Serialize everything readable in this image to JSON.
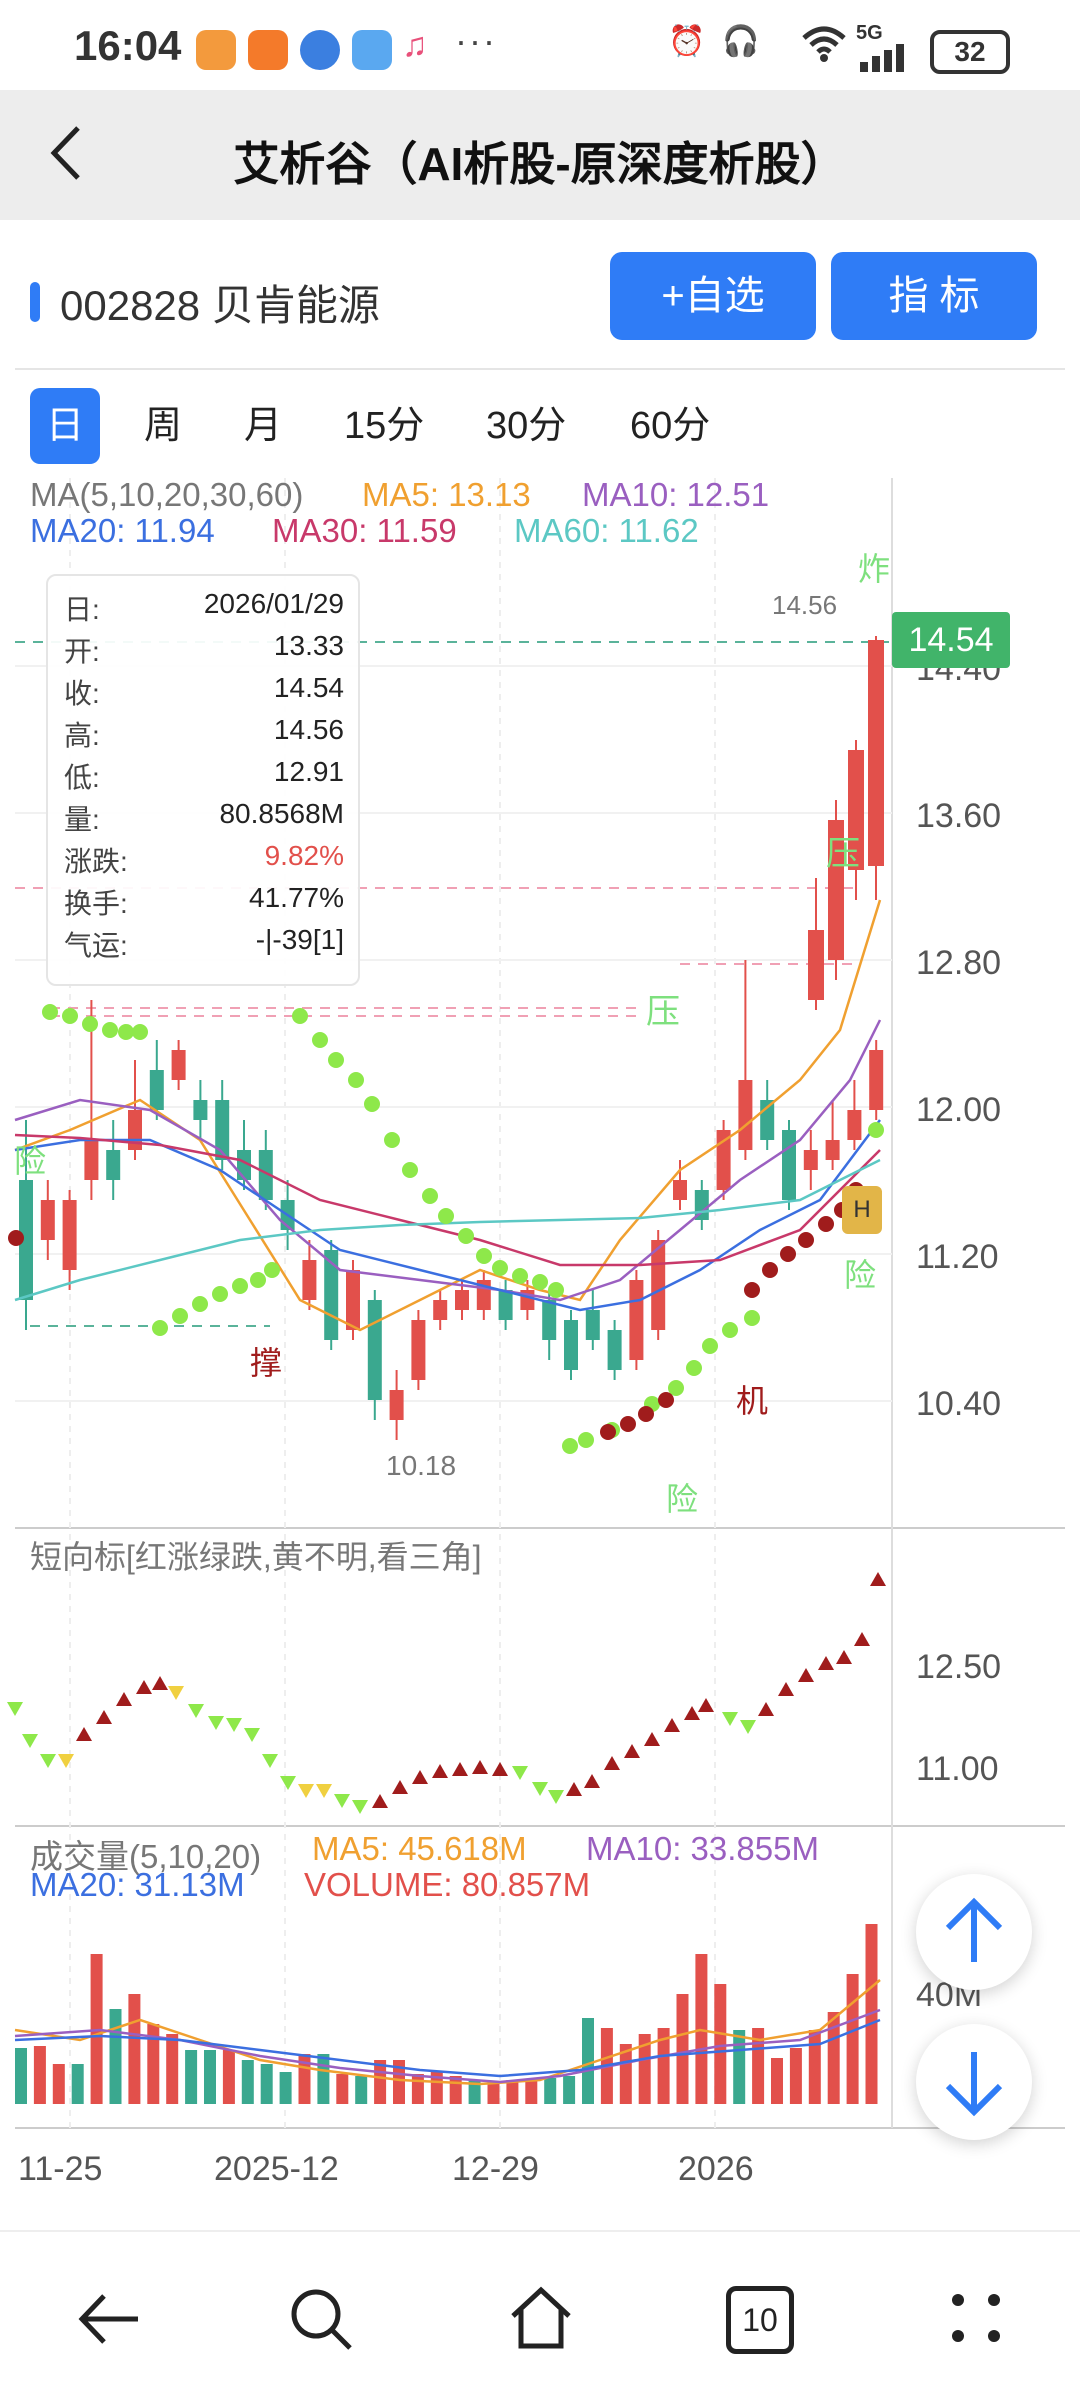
{
  "status": {
    "time": "16:04",
    "dots": "···",
    "network": "5G",
    "battery": "32"
  },
  "nav": {
    "title": "艾析谷（AI析股-原深度析股）"
  },
  "stock": {
    "name": "002828 贝肯能源",
    "add_btn": "+自选",
    "indicator_btn": "指  标"
  },
  "tabs": [
    "日",
    "周",
    "月",
    "15分",
    "30分",
    "60分"
  ],
  "ma_legend": {
    "label": "MA(5,10,20,30,60)",
    "ma5": "MA5: 13.13",
    "ma10": "MA10: 12.51",
    "ma20": "MA20: 11.94",
    "ma30": "MA30: 11.59",
    "ma60": "MA60: 11.62"
  },
  "info": {
    "rows": [
      {
        "k": "日:",
        "v": "2026/01/29"
      },
      {
        "k": "开:",
        "v": "13.33"
      },
      {
        "k": "收:",
        "v": "14.54"
      },
      {
        "k": "高:",
        "v": "14.56"
      },
      {
        "k": "低:",
        "v": "12.91"
      },
      {
        "k": "量:",
        "v": "80.8568M"
      },
      {
        "k": "涨跌:",
        "v": "9.82%"
      },
      {
        "k": "换手:",
        "v": "41.77%"
      },
      {
        "k": "气运:",
        "v": "-|-39[1]"
      }
    ]
  },
  "price_axis": [
    "14.40",
    "13.60",
    "12.80",
    "12.00",
    "11.20",
    "10.40"
  ],
  "current_price": "14.54",
  "high_mark": "14.56",
  "low_mark": "10.18",
  "annotations": {
    "zha": "炸",
    "ya1": "压",
    "ya2": "压",
    "xian1": "险",
    "xian2": "险",
    "xian3": "险",
    "cheng": "撑",
    "ji": "机",
    "h": "H"
  },
  "short_indicator": {
    "title": "短向标[红涨绿跌,黄不明,看三角]",
    "axis": [
      "12.50",
      "11.00"
    ]
  },
  "volume": {
    "label": "成交量(5,10,20)",
    "ma5": "MA5: 45.618M",
    "ma10": "MA10: 33.855M",
    "ma20": "MA20: 31.13M",
    "vol": "VOLUME: 80.857M",
    "axis": "40M"
  },
  "x_axis": [
    "11-25",
    "2025-12",
    "12-29",
    "2026"
  ],
  "bottom_nav": {
    "tabs_count": "10"
  },
  "colors": {
    "accent": "#2f7cf6",
    "up": "#e2504b",
    "down": "#3aa88f",
    "ma5": "#f0a030",
    "ma10": "#9a5fc0",
    "ma20": "#3b6fe0",
    "ma30": "#c8396a",
    "ma60": "#5cc8c4"
  }
}
